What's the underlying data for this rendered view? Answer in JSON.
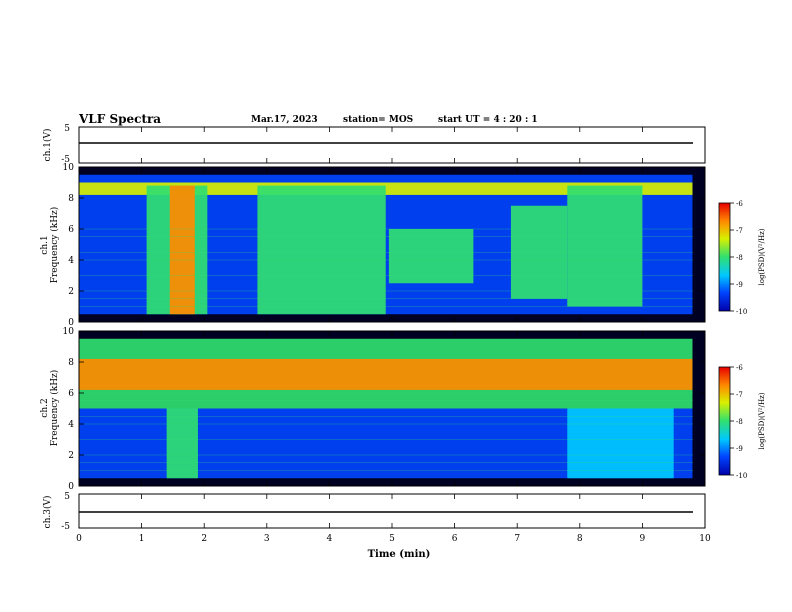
{
  "header": {
    "title": "VLF Spectra",
    "date": "Mar.17, 2023",
    "station": "station= MOS",
    "start": "start  UT =   4 : 20 : 1"
  },
  "colors": {
    "spectrogram_scale": [
      "#0000aa",
      "#0044ff",
      "#00c8ff",
      "#30e070",
      "#d8f000",
      "#ff8a00",
      "#e80000"
    ]
  },
  "chart_data": [
    {
      "type": "line",
      "panel": "ch1-waveform",
      "ylabel": "ch.1(V)",
      "y_ticks": [
        "5",
        "-5"
      ],
      "ylim": [
        -5,
        5
      ],
      "x": [
        0,
        10
      ],
      "values": [
        0,
        0
      ]
    },
    {
      "type": "heatmap",
      "panel": "ch1-spectrogram",
      "ylabel_channel": "ch.1",
      "ylabel": "Frequency (kHz)",
      "y_ticks": [
        "0",
        "2",
        "4",
        "6",
        "8",
        "10"
      ],
      "ylim": [
        0,
        10
      ],
      "colorbar_label": "log(PSD)(V²/Hz)",
      "colorbar_ticks": [
        "-6",
        "-7",
        "-8",
        "-9",
        "-10"
      ],
      "colorbar_range": [
        -10,
        -6
      ],
      "bands": [
        {
          "x_start": 0.0,
          "x_end": 9.8,
          "f_low": 0.5,
          "f_high": 9.5,
          "level": -9.3
        },
        {
          "x_start": 0.0,
          "x_end": 9.8,
          "f_low": 8.2,
          "f_high": 9.0,
          "level": -7.6
        },
        {
          "x_start": 1.08,
          "x_end": 2.05,
          "f_low": 0.5,
          "f_high": 8.8,
          "level": -8.2
        },
        {
          "x_start": 1.45,
          "x_end": 1.85,
          "f_low": 0.5,
          "f_high": 8.8,
          "level": -6.8
        },
        {
          "x_start": 2.85,
          "x_end": 4.9,
          "f_low": 0.5,
          "f_high": 8.8,
          "level": -7.9
        },
        {
          "x_start": 4.95,
          "x_end": 6.3,
          "f_low": 2.5,
          "f_high": 6.0,
          "level": -8.1
        },
        {
          "x_start": 6.9,
          "x_end": 7.8,
          "f_low": 1.5,
          "f_high": 7.5,
          "level": -8.0
        },
        {
          "x_start": 7.8,
          "x_end": 9.0,
          "f_low": 1.0,
          "f_high": 8.8,
          "level": -8.0
        }
      ]
    },
    {
      "type": "heatmap",
      "panel": "ch2-spectrogram",
      "ylabel_channel": "ch.2",
      "ylabel": "Frequency (kHz)",
      "y_ticks": [
        "0",
        "2",
        "4",
        "6",
        "8",
        "10"
      ],
      "ylim": [
        0,
        10
      ],
      "colorbar_label": "log(PSD)(V²/Hz)",
      "colorbar_ticks": [
        "-6",
        "-7",
        "-8",
        "-9",
        "-10"
      ],
      "colorbar_range": [
        -10,
        -6
      ],
      "bands": [
        {
          "x_start": 0.0,
          "x_end": 9.8,
          "f_low": 0.5,
          "f_high": 5.0,
          "level": -9.5
        },
        {
          "x_start": 0.0,
          "x_end": 9.8,
          "f_low": 5.0,
          "f_high": 9.5,
          "level": -8.2
        },
        {
          "x_start": 0.0,
          "x_end": 9.8,
          "f_low": 6.2,
          "f_high": 8.2,
          "level": -7.0
        },
        {
          "x_start": 1.4,
          "x_end": 1.9,
          "f_low": 0.5,
          "f_high": 5.0,
          "level": -8.3
        },
        {
          "x_start": 7.8,
          "x_end": 9.5,
          "f_low": 0.5,
          "f_high": 5.0,
          "level": -8.7
        }
      ]
    },
    {
      "type": "line",
      "panel": "ch3-waveform",
      "ylabel": "ch.3(V)",
      "y_ticks": [
        "5",
        "-5"
      ],
      "ylim": [
        -5,
        5
      ],
      "x": [
        0,
        10
      ],
      "values": [
        0,
        0
      ]
    }
  ],
  "x_axis": {
    "label": "Time (min)",
    "ticks": [
      "0",
      "1",
      "2",
      "3",
      "4",
      "5",
      "6",
      "7",
      "8",
      "9",
      "10"
    ],
    "range": [
      0,
      10
    ]
  }
}
